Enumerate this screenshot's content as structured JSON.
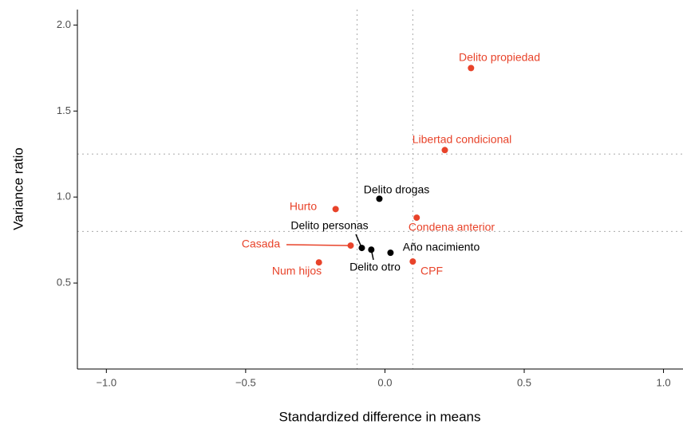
{
  "chart_data": {
    "type": "scatter",
    "xlabel": "Standardized difference in means",
    "ylabel": "Variance ratio",
    "xlim": [
      -1.104,
      1.07
    ],
    "ylim": [
      0,
      2.09
    ],
    "xticks": [
      {
        "value": -1.0,
        "label": "−1.0"
      },
      {
        "value": -0.5,
        "label": "−0.5"
      },
      {
        "value": 0.0,
        "label": "0.0"
      },
      {
        "value": 0.5,
        "label": "0.5"
      },
      {
        "value": 1.0,
        "label": "1.0"
      }
    ],
    "yticks": [
      {
        "value": 0.5,
        "label": "0.5"
      },
      {
        "value": 1.0,
        "label": "1.0"
      },
      {
        "value": 1.5,
        "label": "1.5"
      },
      {
        "value": 2.0,
        "label": "2.0"
      }
    ],
    "vlines": [
      -0.1,
      0.1
    ],
    "hlines": [
      0.8,
      1.25
    ],
    "points": [
      {
        "label": "Delito propiedad",
        "x": 0.309,
        "y": 1.75,
        "color": "#e8432a"
      },
      {
        "label": "Libertad condicional",
        "x": 0.215,
        "y": 1.273,
        "color": "#e8432a"
      },
      {
        "label": "Delito drogas",
        "x": -0.02,
        "y": 0.99,
        "color": "#000000"
      },
      {
        "label": "Hurto",
        "x": -0.177,
        "y": 0.93,
        "color": "#e8432a"
      },
      {
        "label": "Condena anterior",
        "x": 0.114,
        "y": 0.88,
        "color": "#e8432a"
      },
      {
        "label": "Delito personas",
        "x": -0.083,
        "y": 0.704,
        "color": "#000000"
      },
      {
        "label": "Casada",
        "x": -0.123,
        "y": 0.718,
        "color": "#e8432a"
      },
      {
        "label": "Delito otro",
        "x": -0.049,
        "y": 0.694,
        "color": "#000000"
      },
      {
        "label": "Año nacimiento",
        "x": 0.02,
        "y": 0.676,
        "color": "#000000"
      },
      {
        "label": "CPF",
        "x": 0.1,
        "y": 0.625,
        "color": "#e8432a"
      },
      {
        "label": "Num hijos",
        "x": -0.237,
        "y": 0.62,
        "color": "#e8432a"
      }
    ]
  }
}
